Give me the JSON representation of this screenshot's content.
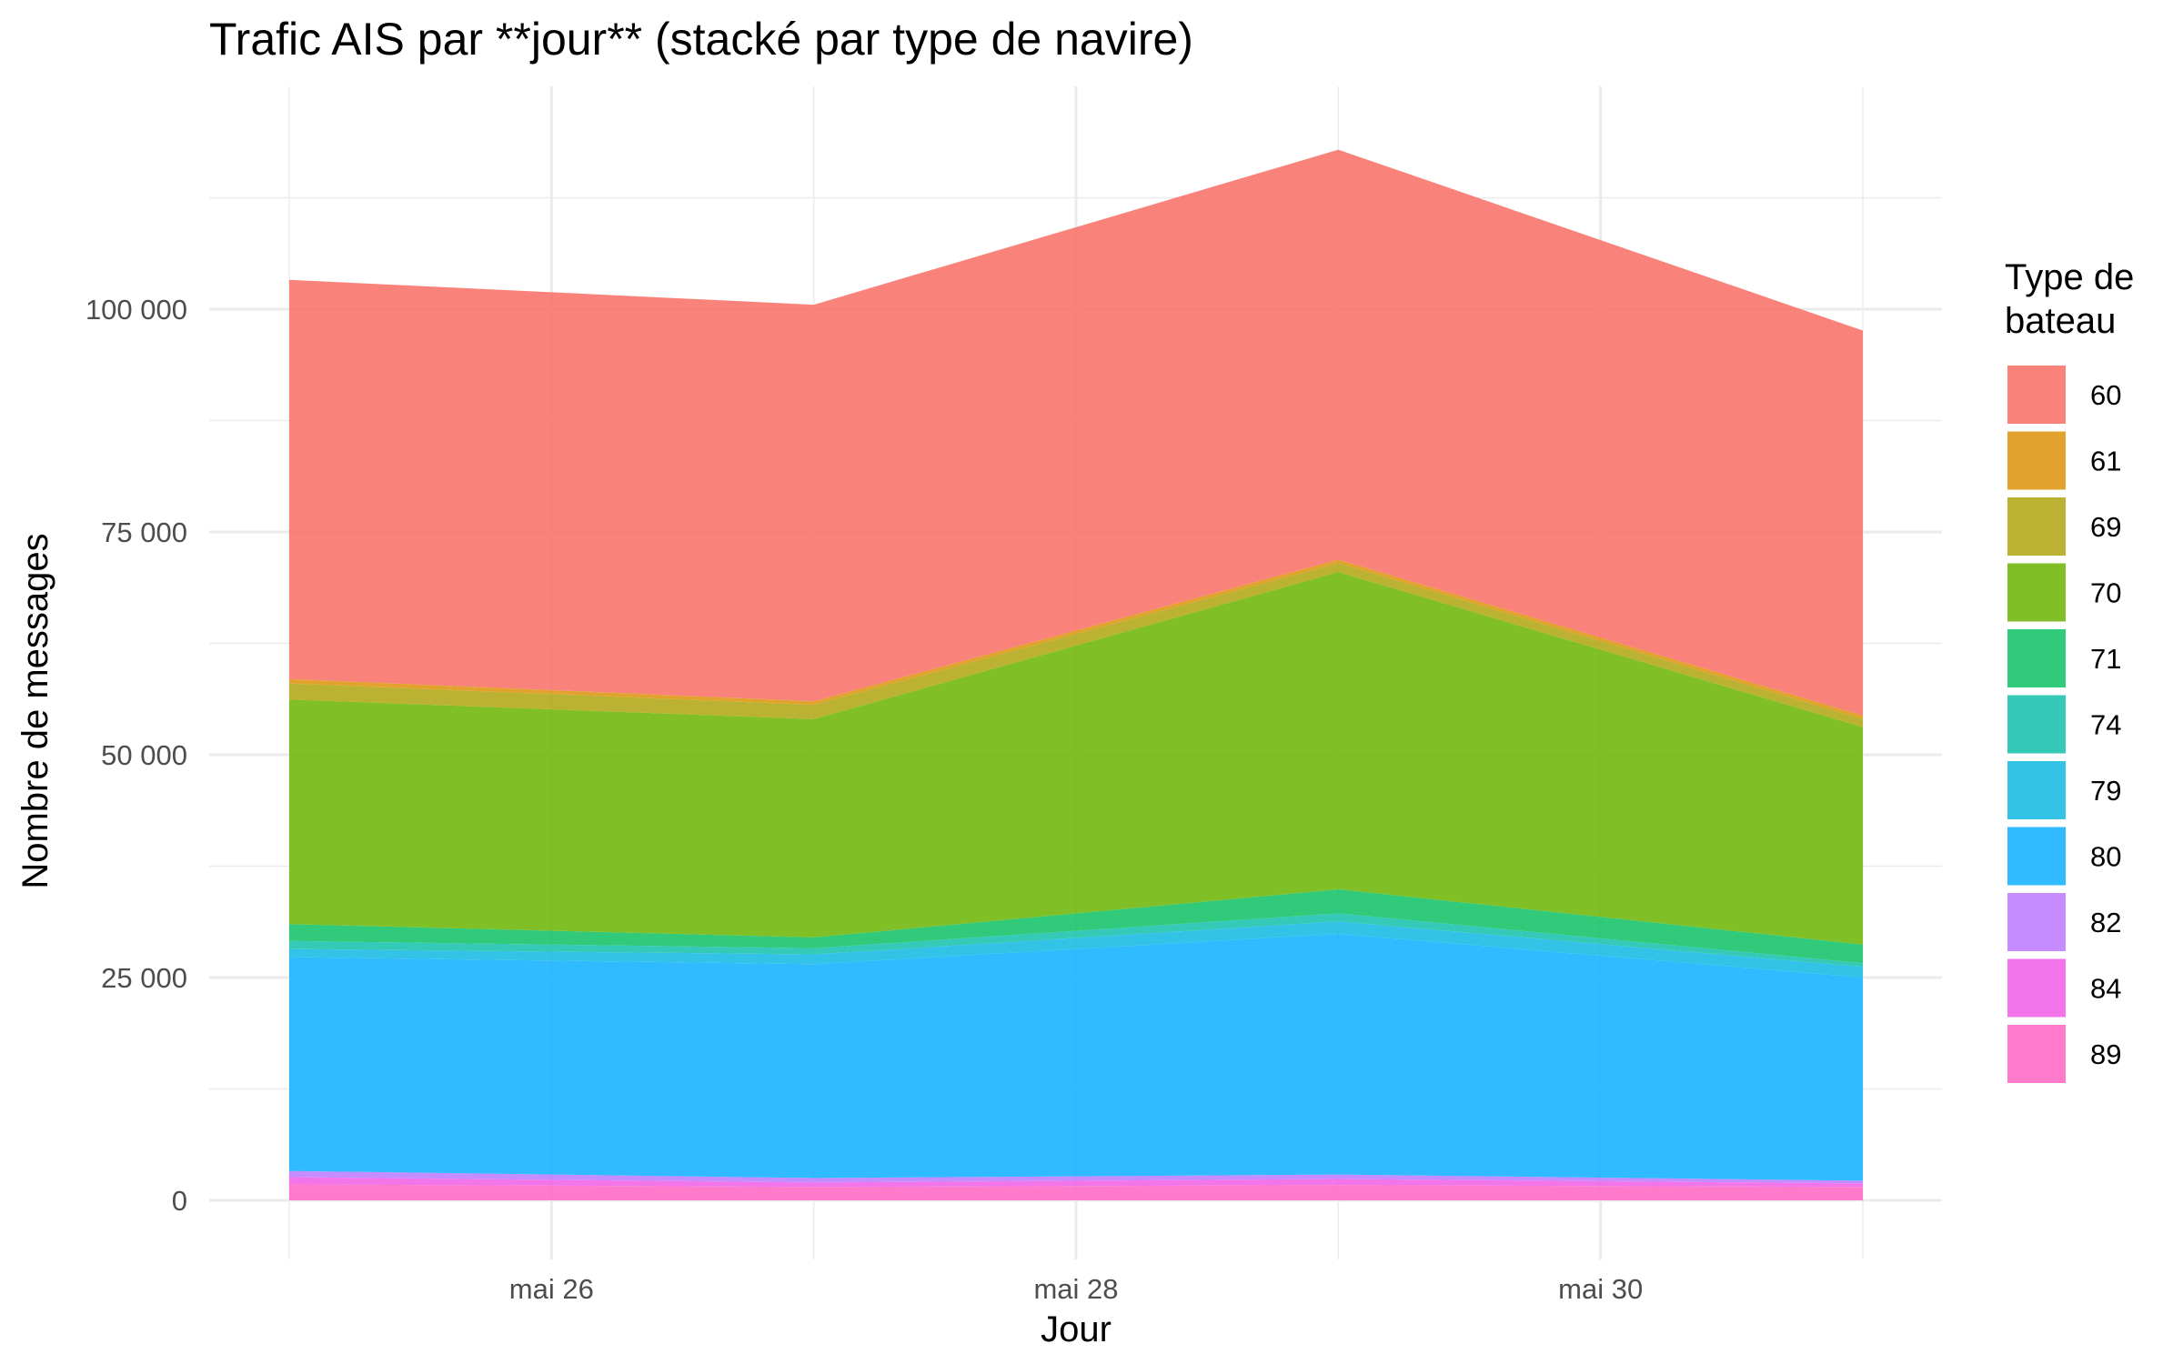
{
  "chart_data": {
    "type": "area",
    "title": "Trafic AIS par **jour** (stacké par type de navire)",
    "xlabel": "Jour",
    "ylabel": "Nombre de messages",
    "x": [
      "2024-05-25",
      "2024-05-27",
      "2024-05-29",
      "2024-05-31"
    ],
    "x_ticks": [
      "mai 26",
      "mai 28",
      "mai 30"
    ],
    "y_ticks": [
      "0",
      "25 000",
      "50 000",
      "75 000",
      "100 000"
    ],
    "ylim": [
      0,
      120000
    ],
    "grid": true,
    "legend": {
      "title": "Type de bateau",
      "position": "right"
    },
    "series": [
      {
        "name": "89",
        "color": "#FF6BC4",
        "values": [
          1800,
          1500,
          1700,
          1500
        ]
      },
      {
        "name": "84",
        "color": "#F166E8",
        "values": [
          800,
          500,
          700,
          400
        ]
      },
      {
        "name": "82",
        "color": "#BE80FF",
        "values": [
          700,
          500,
          500,
          300
        ]
      },
      {
        "name": "80",
        "color": "#19B2FF",
        "values": [
          24000,
          24000,
          27000,
          22800
        ]
      },
      {
        "name": "79",
        "color": "#1CBDE3",
        "values": [
          900,
          1100,
          1400,
          1200
        ]
      },
      {
        "name": "74",
        "color": "#1FC4B0",
        "values": [
          900,
          700,
          900,
          400
        ]
      },
      {
        "name": "71",
        "color": "#19C46C",
        "values": [
          1900,
          1200,
          2700,
          2100
        ]
      },
      {
        "name": "70",
        "color": "#72B80E",
        "values": [
          25200,
          24500,
          35600,
          24400
        ]
      },
      {
        "name": "69",
        "color": "#B4A91C",
        "values": [
          1800,
          1600,
          1000,
          900
        ]
      },
      {
        "name": "61",
        "color": "#DF9917",
        "values": [
          500,
          400,
          400,
          400
        ]
      },
      {
        "name": "60",
        "color": "#F8766D",
        "values": [
          44800,
          44500,
          46000,
          43200
        ]
      }
    ]
  }
}
